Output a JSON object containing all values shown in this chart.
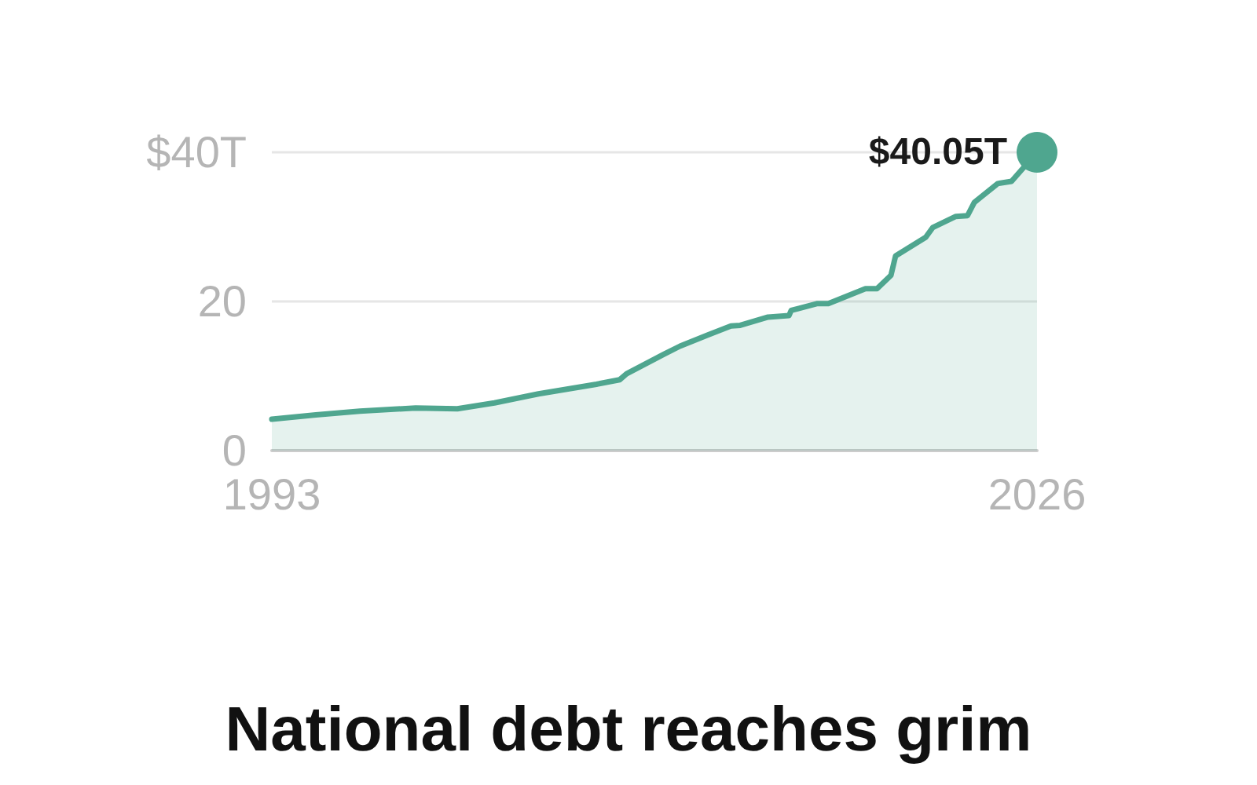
{
  "chart_data": {
    "type": "area",
    "title": "National debt reaches grim",
    "x": [
      1993,
      1994.9,
      1996.8,
      1999.2,
      2001,
      2002.6,
      2004.5,
      2007,
      2008,
      2008.3,
      2009.9,
      2010.6,
      2011.8,
      2012.8,
      2013.2,
      2014.4,
      2015.3,
      2015.4,
      2016.5,
      2017,
      2018.6,
      2019.1,
      2019.7,
      2019.9,
      2021.2,
      2021.5,
      2022.5,
      2023,
      2023.3,
      2024.3,
      2024.9,
      2026
    ],
    "series": [
      {
        "color": "#4fa68f",
        "values": [
          4.2,
          4.8,
          5.3,
          5.7,
          5.6,
          6.4,
          7.6,
          8.9,
          9.5,
          10.3,
          12.9,
          14.0,
          15.5,
          16.7,
          16.8,
          17.9,
          18.1,
          18.8,
          19.7,
          19.7,
          21.7,
          21.7,
          23.5,
          26.1,
          28.6,
          29.9,
          31.4,
          31.5,
          33.3,
          35.8,
          36.1,
          40
        ]
      }
    ],
    "xlim": [
      1993,
      2026
    ],
    "xticks": [
      1993,
      2026
    ],
    "ylim": [
      0,
      40
    ],
    "yticks": [
      0,
      20,
      {
        "value": 40,
        "label": "$40T"
      }
    ],
    "grid": "y",
    "marker": "none",
    "line_style": "solid",
    "annotations": [
      {
        "text": "$40.05T",
        "x": 2026,
        "y": 40
      }
    ]
  }
}
